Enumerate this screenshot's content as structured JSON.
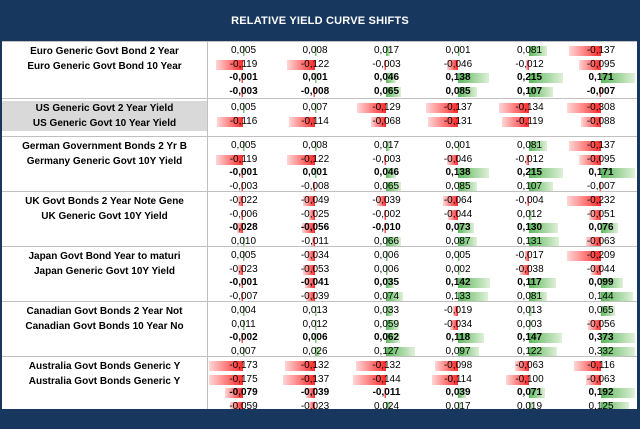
{
  "title": "RELATIVE YIELD CURVE SHIFTS",
  "colors": {
    "header_bg": "#17375e",
    "neg_bar": "#ff2a2a",
    "pos_bar": "#5cb85c",
    "label_shade": "#d9d9d9"
  },
  "groups": [
    {
      "labels": [
        "Euro Generic Govt Bond 2 Year",
        "Euro Generic Govt Bond 10 Year"
      ],
      "shaded": false,
      "rows": [
        {
          "bold": false,
          "values": [
            "0,005",
            "0,008",
            "0,017",
            "0,001",
            "0,081",
            "-0,137"
          ]
        },
        {
          "bold": false,
          "values": [
            "-0,119",
            "-0,122",
            "-0,003",
            "-0,046",
            "-0,012",
            "-0,095"
          ]
        },
        {
          "bold": true,
          "values": [
            "-0,001",
            "0,001",
            "0,046",
            "0,138",
            "0,215",
            "0,171"
          ]
        },
        {
          "bold": true,
          "values": [
            "-0,003",
            "-0,008",
            "0,065",
            "0,085",
            "0,107",
            "-0,007"
          ]
        }
      ]
    },
    {
      "labels": [
        "US Generic Govt 2 Year Yield",
        "US Generic Govt 10 Year Yield"
      ],
      "shaded": true,
      "rows": [
        {
          "bold": false,
          "values": [
            "0,005",
            "0,007",
            "-0,129",
            "-0,137",
            "-0,134",
            "-0,308"
          ]
        },
        {
          "bold": false,
          "values": [
            "-0,116",
            "-0,114",
            "-0,068",
            "-0,131",
            "-0,119",
            "-0,088"
          ]
        }
      ]
    },
    {
      "labels": [
        "German Government Bonds 2 Yr B",
        "Germany Generic Govt 10Y Yield"
      ],
      "shaded": false,
      "rows": [
        {
          "bold": false,
          "values": [
            "0,005",
            "0,008",
            "0,017",
            "0,001",
            "0,081",
            "-0,137"
          ]
        },
        {
          "bold": false,
          "values": [
            "-0,119",
            "-0,122",
            "-0,003",
            "-0,046",
            "-0,012",
            "-0,095"
          ]
        },
        {
          "bold": true,
          "values": [
            "-0,001",
            "0,001",
            "0,046",
            "0,138",
            "0,215",
            "0,171"
          ]
        },
        {
          "bold": false,
          "values": [
            "-0,003",
            "-0,008",
            "0,065",
            "0,085",
            "0,107",
            "-0,007"
          ]
        }
      ]
    },
    {
      "labels": [
        "UK Govt Bonds 2 Year Note Gene",
        "UK Generic Govt 10Y Yield"
      ],
      "shaded": false,
      "rows": [
        {
          "bold": false,
          "values": [
            "-0,022",
            "-0,049",
            "-0,039",
            "-0,064",
            "-0,004",
            "-0,232"
          ]
        },
        {
          "bold": false,
          "values": [
            "-0,006",
            "-0,025",
            "-0,002",
            "-0,044",
            "0,012",
            "-0,051"
          ]
        },
        {
          "bold": true,
          "values": [
            "-0,028",
            "-0,056",
            "-0,010",
            "0,073",
            "0,130",
            "0,076"
          ]
        },
        {
          "bold": false,
          "values": [
            "0,010",
            "-0,011",
            "0,066",
            "0,087",
            "0,131",
            "-0,063"
          ]
        }
      ]
    },
    {
      "labels": [
        "Japan Govt Bond Year to maturi",
        "Japan Generic Govt 10Y Yield"
      ],
      "shaded": false,
      "rows": [
        {
          "bold": false,
          "values": [
            "0,005",
            "-0,034",
            "0,006",
            "0,005",
            "-0,017",
            "-0,209"
          ]
        },
        {
          "bold": false,
          "values": [
            "-0,023",
            "-0,053",
            "0,006",
            "0,002",
            "-0,038",
            "-0,044"
          ]
        },
        {
          "bold": true,
          "values": [
            "-0,001",
            "-0,041",
            "0,035",
            "0,142",
            "0,117",
            "0,099"
          ]
        },
        {
          "bold": false,
          "values": [
            "-0,007",
            "-0,039",
            "0,074",
            "0,133",
            "0,081",
            "0,144"
          ]
        }
      ]
    },
    {
      "labels": [
        "Canadian Govt Bonds 2 Year Not",
        "Canadian Govt Bonds 10 Year No"
      ],
      "shaded": false,
      "rows": [
        {
          "bold": false,
          "values": [
            "0,004",
            "0,013",
            "0,033",
            "-0,019",
            "0,013",
            "0,065"
          ]
        },
        {
          "bold": false,
          "values": [
            "0,011",
            "0,012",
            "0,059",
            "-0,034",
            "0,003",
            "-0,056"
          ]
        },
        {
          "bold": true,
          "values": [
            "-0,002",
            "0,006",
            "0,062",
            "0,118",
            "0,147",
            "0,373"
          ]
        },
        {
          "bold": false,
          "values": [
            "0,007",
            "0,026",
            "0,127",
            "0,097",
            "0,122",
            "0,332"
          ]
        }
      ]
    },
    {
      "labels": [
        "Australia Govt Bonds Generic Y",
        "Australia Govt Bonds Generic Y"
      ],
      "shaded": false,
      "rows": [
        {
          "bold": false,
          "values": [
            "-0,173",
            "-0,132",
            "-0,132",
            "-0,098",
            "-0,063",
            "-0,116"
          ]
        },
        {
          "bold": false,
          "values": [
            "-0,175",
            "-0,137",
            "-0,144",
            "-0,114",
            "-0,100",
            "-0,063"
          ]
        },
        {
          "bold": true,
          "values": [
            "-0,079",
            "-0,039",
            "-0,011",
            "0,039",
            "0,071",
            "0,192"
          ]
        },
        {
          "bold": false,
          "values": [
            "-0,059",
            "-0,023",
            "0,024",
            "0,017",
            "0,019",
            "0,125"
          ]
        }
      ]
    }
  ]
}
